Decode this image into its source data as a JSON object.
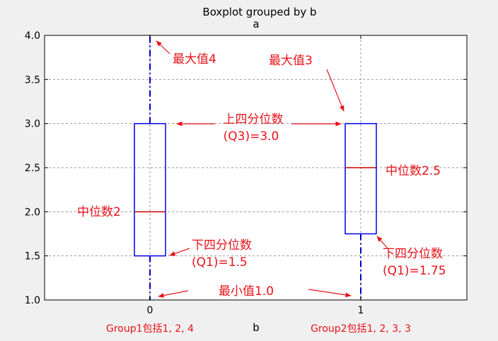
{
  "chart_data": {
    "type": "boxplot",
    "title": "Boxplot grouped by b",
    "subtitle": "a",
    "xlabel": "b",
    "ylim": [
      1.0,
      4.0
    ],
    "yticks": [
      "1.0",
      "1.5",
      "2.0",
      "2.5",
      "3.0",
      "3.5",
      "4.0"
    ],
    "grid": true,
    "groups": [
      {
        "tick": "0",
        "caption": "Group1包括1, 2, 4",
        "min": 1.0,
        "q1": 1.5,
        "median": 2.0,
        "q3": 3.0,
        "max": 4.0
      },
      {
        "tick": "1",
        "caption": "Group2包括1, 2, 3, 3",
        "min": 1.0,
        "q1": 1.75,
        "median": 2.5,
        "q3": 3.0,
        "max": 3.0
      }
    ],
    "colors": {
      "box": "#0000ee",
      "median": "#cc0000",
      "whisker": "#0000cc",
      "annotation": "#e8131b",
      "grid": "#999999",
      "background": "#f0f0f0",
      "plot_background": "#ffffff"
    },
    "annotations": {
      "max4": "最大值4",
      "max3": "最大值3",
      "q3_title": "上四分位数",
      "q3_value": "(Q3)=3.0",
      "median2": "中位数2",
      "median25": "中位数2.5",
      "q1a_title": "下四分位数",
      "q1a_value": "(Q1)=1.5",
      "q1b_title": "下四分位数",
      "q1b_value": "(Q1)=1.75",
      "min_label": "最小值1.0"
    }
  }
}
